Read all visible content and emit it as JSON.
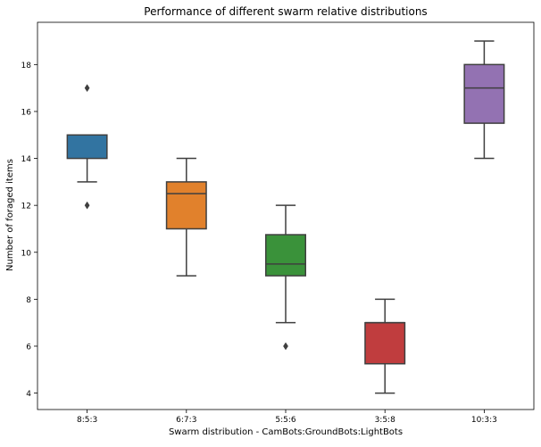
{
  "chart_data": {
    "type": "box",
    "title": "Performance of different swarm relative distributions",
    "xlabel": "Swarm distribution - CamBots:GroundBots:LightBots",
    "ylabel": "Number of foraged items",
    "ylim": [
      3.3,
      19.8
    ],
    "yticks": [
      4,
      6,
      8,
      10,
      12,
      14,
      16,
      18
    ],
    "categories": [
      "8:5:3",
      "6:7:3",
      "5:5:6",
      "3:5:8",
      "10:3:3"
    ],
    "boxes": [
      {
        "category": "8:5:3",
        "whisker_low": 13,
        "q1": 14,
        "median": 15,
        "q3": 15,
        "whisker_high": 15,
        "outliers": [
          12,
          17
        ],
        "color": "#3274a1"
      },
      {
        "category": "6:7:3",
        "whisker_low": 9,
        "q1": 11,
        "median": 12.5,
        "q3": 13,
        "whisker_high": 14,
        "outliers": [],
        "color": "#e1812c"
      },
      {
        "category": "5:5:6",
        "whisker_low": 7,
        "q1": 9,
        "median": 9.5,
        "q3": 10.75,
        "whisker_high": 12,
        "outliers": [
          6
        ],
        "color": "#3a923a"
      },
      {
        "category": "3:5:8",
        "whisker_low": 4,
        "q1": 5.25,
        "median": 7,
        "q3": 7,
        "whisker_high": 8,
        "outliers": [],
        "color": "#c03d3e"
      },
      {
        "category": "10:3:3",
        "whisker_low": 14,
        "q1": 15.5,
        "median": 17,
        "q3": 18,
        "whisker_high": 19,
        "outliers": [],
        "color": "#9372b2"
      }
    ],
    "grid": false,
    "legend": "none"
  }
}
